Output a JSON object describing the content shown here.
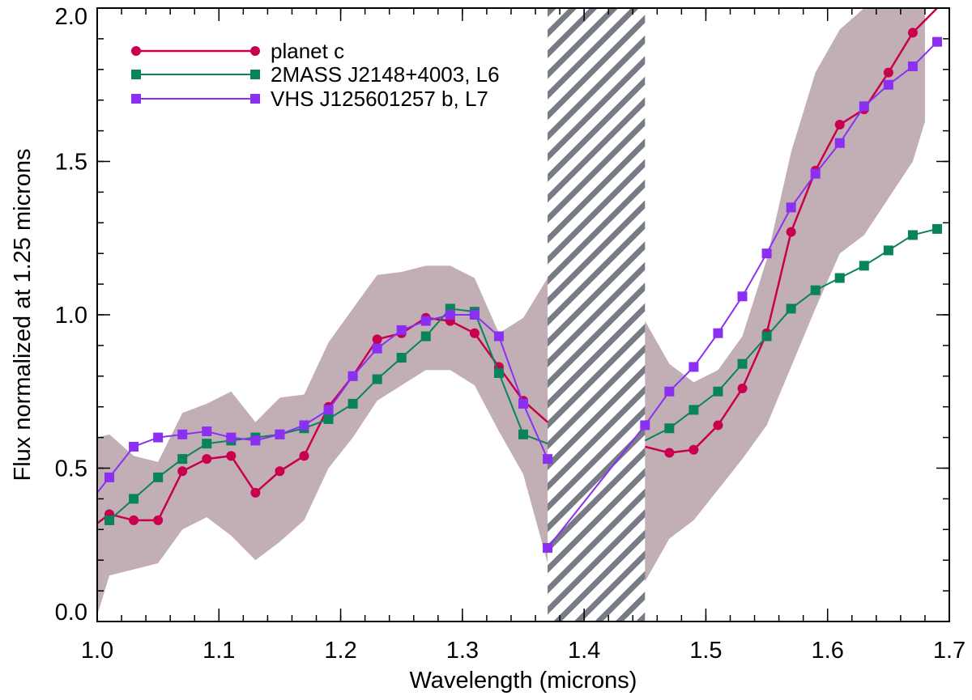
{
  "chart_data": {
    "type": "line",
    "xlabel": "Wavelength (microns)",
    "ylabel": "Flux normalized at 1.25 microns",
    "xlim": [
      1.0,
      1.7
    ],
    "ylim": [
      0.0,
      2.0
    ],
    "xticks": [
      1.0,
      1.1,
      1.2,
      1.3,
      1.4,
      1.5,
      1.6,
      1.7
    ],
    "xtick_labels": [
      "1.0",
      "1.1",
      "1.2",
      "1.3",
      "1.4",
      "1.5",
      "1.6",
      "1.7"
    ],
    "yticks": [
      0.0,
      0.5,
      1.0,
      1.5,
      2.0
    ],
    "ytick_labels": [
      "0.0",
      "0.5",
      "1.0",
      "1.5",
      "2.0"
    ],
    "x_minor_step": 0.02,
    "y_minor_step": 0.1,
    "grid": false,
    "legend_position": "top-left",
    "masked_region": {
      "x0": 1.37,
      "x1": 1.45,
      "pattern": "diagonal-hatch",
      "color": "#777b86"
    },
    "uncertainty_band": {
      "color": "#c2afb6",
      "x": [
        1.0,
        1.01,
        1.03,
        1.05,
        1.07,
        1.09,
        1.11,
        1.13,
        1.15,
        1.17,
        1.19,
        1.21,
        1.23,
        1.25,
        1.27,
        1.29,
        1.31,
        1.33,
        1.35,
        1.37,
        1.45,
        1.47,
        1.49,
        1.51,
        1.53,
        1.55,
        1.57,
        1.59,
        1.61,
        1.63,
        1.65,
        1.67,
        1.68
      ],
      "upper": [
        0.6,
        0.61,
        0.54,
        0.52,
        0.68,
        0.71,
        0.75,
        0.65,
        0.73,
        0.74,
        0.91,
        1.02,
        1.13,
        1.14,
        1.16,
        1.16,
        1.12,
        0.94,
        0.99,
        1.12,
        0.98,
        0.84,
        0.78,
        0.82,
        0.93,
        1.18,
        1.53,
        1.79,
        1.93,
        2.0,
        2.0,
        2.0,
        2.0
      ],
      "lower": [
        0.02,
        0.15,
        0.17,
        0.19,
        0.3,
        0.34,
        0.28,
        0.2,
        0.26,
        0.33,
        0.5,
        0.6,
        0.72,
        0.77,
        0.82,
        0.82,
        0.77,
        0.62,
        0.48,
        0.19,
        0.13,
        0.27,
        0.33,
        0.43,
        0.53,
        0.64,
        0.83,
        1.02,
        1.2,
        1.26,
        1.38,
        1.5,
        1.63
      ]
    },
    "series": [
      {
        "name": "planet c",
        "color": "#c8004e",
        "marker": "circle",
        "line_width": 2.5,
        "x": [
          1.0,
          1.01,
          1.03,
          1.05,
          1.07,
          1.09,
          1.11,
          1.13,
          1.15,
          1.17,
          1.19,
          1.21,
          1.23,
          1.25,
          1.27,
          1.29,
          1.31,
          1.33,
          1.35,
          1.37
        ],
        "y": [
          0.32,
          0.35,
          0.33,
          0.33,
          0.49,
          0.53,
          0.54,
          0.42,
          0.49,
          0.54,
          0.7,
          0.8,
          0.92,
          0.94,
          0.99,
          0.98,
          0.94,
          0.83,
          0.72,
          0.65
        ],
        "x2": [
          1.45,
          1.47,
          1.49,
          1.51,
          1.53,
          1.55,
          1.57,
          1.59,
          1.61,
          1.63,
          1.65,
          1.67,
          1.69
        ],
        "y2": [
          0.57,
          0.55,
          0.56,
          0.64,
          0.76,
          0.94,
          1.27,
          1.47,
          1.62,
          1.67,
          1.79,
          1.92,
          2.0
        ],
        "marker_mask": [
          false,
          true,
          true,
          true,
          true,
          true,
          true,
          true,
          true,
          true,
          true,
          true,
          true,
          true,
          true,
          true,
          true,
          true,
          true,
          false
        ],
        "marker_mask2": [
          false,
          true,
          true,
          true,
          true,
          true,
          true,
          true,
          true,
          true,
          true,
          true,
          false
        ]
      },
      {
        "name": "2MASS J2148+4003, L6",
        "color": "#08835a",
        "marker": "square",
        "line_width": 2,
        "x": [
          1.01,
          1.03,
          1.05,
          1.07,
          1.09,
          1.11,
          1.13,
          1.15,
          1.17,
          1.19,
          1.21,
          1.23,
          1.25,
          1.27,
          1.29,
          1.31,
          1.33,
          1.35,
          1.37
        ],
        "y": [
          0.33,
          0.4,
          0.47,
          0.53,
          0.58,
          0.59,
          0.6,
          0.61,
          0.63,
          0.66,
          0.71,
          0.79,
          0.86,
          0.93,
          1.02,
          1.01,
          0.81,
          0.61,
          0.58
        ],
        "x2": [
          1.45,
          1.47,
          1.49,
          1.51,
          1.53,
          1.55,
          1.57,
          1.59,
          1.61,
          1.63,
          1.65,
          1.67,
          1.69
        ],
        "y2": [
          0.59,
          0.63,
          0.69,
          0.75,
          0.84,
          0.93,
          1.02,
          1.08,
          1.12,
          1.16,
          1.21,
          1.26,
          1.28
        ],
        "marker_mask": [
          true,
          true,
          true,
          true,
          true,
          true,
          true,
          true,
          true,
          true,
          true,
          true,
          true,
          true,
          true,
          true,
          true,
          true,
          false
        ],
        "marker_mask2": [
          false,
          true,
          true,
          true,
          true,
          true,
          true,
          true,
          true,
          true,
          true,
          true,
          true
        ]
      },
      {
        "name": "VHS J125601257 b, L7",
        "color": "#8b2ff2",
        "marker": "square",
        "line_width": 2,
        "x": [
          1.0,
          1.01,
          1.03,
          1.05,
          1.07,
          1.09,
          1.11,
          1.13,
          1.15,
          1.17,
          1.19,
          1.21,
          1.23,
          1.25,
          1.27,
          1.29,
          1.31,
          1.33,
          1.35,
          1.37
        ],
        "y": [
          0.42,
          0.47,
          0.57,
          0.6,
          0.61,
          0.62,
          0.6,
          0.59,
          0.61,
          0.64,
          0.69,
          0.8,
          0.89,
          0.95,
          0.98,
          1.0,
          1.0,
          0.93,
          0.71,
          0.53
        ],
        "x2": [
          1.37,
          1.45,
          1.47,
          1.49,
          1.51,
          1.53,
          1.55,
          1.57,
          1.59,
          1.61,
          1.63,
          1.65,
          1.67,
          1.69
        ],
        "y2": [
          0.24,
          0.64,
          0.75,
          0.83,
          0.94,
          1.06,
          1.2,
          1.35,
          1.46,
          1.56,
          1.68,
          1.75,
          1.81,
          1.89
        ],
        "marker_mask": [
          false,
          true,
          true,
          true,
          true,
          true,
          true,
          true,
          true,
          true,
          true,
          true,
          true,
          true,
          true,
          true,
          true,
          true,
          true,
          true
        ],
        "marker_mask2": [
          true,
          true,
          true,
          true,
          true,
          true,
          true,
          true,
          true,
          true,
          true,
          true,
          true,
          true
        ]
      }
    ]
  }
}
